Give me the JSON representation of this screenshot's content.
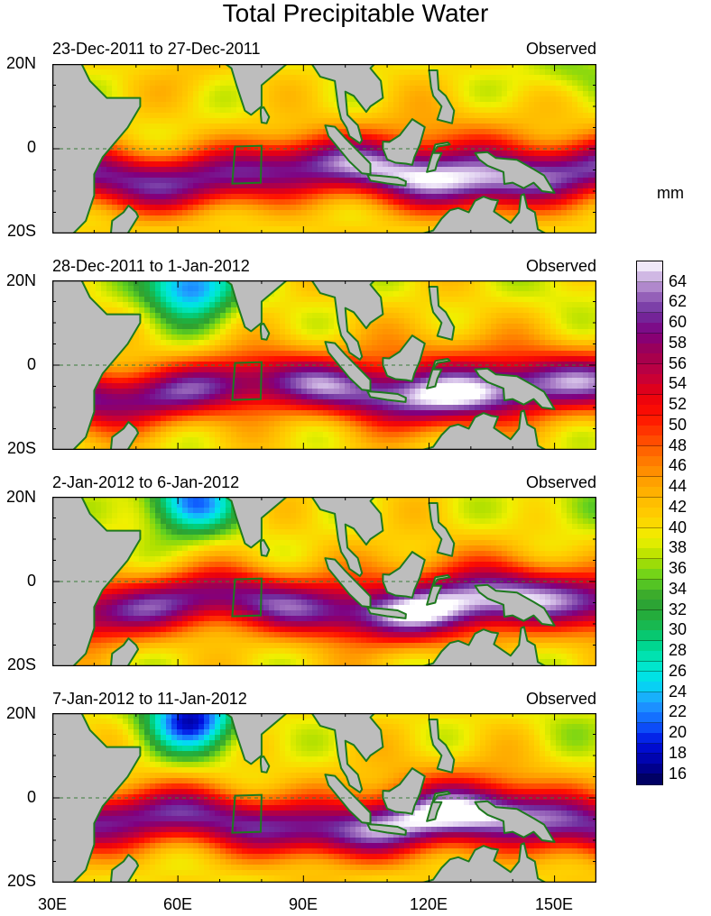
{
  "title": "Total Precipitable Water",
  "units": "mm",
  "colors": {
    "land": "#bdbdbd",
    "coast": "#1e7a1e",
    "box": "#1e7a1e",
    "equator": "#3a7a3a"
  },
  "chart_data": {
    "type": "heatmap",
    "title": "Total Precipitable Water",
    "colorbar_label": "mm",
    "colorbar_ticks": [
      "64",
      "62",
      "60",
      "58",
      "56",
      "54",
      "52",
      "50",
      "48",
      "46",
      "44",
      "42",
      "40",
      "38",
      "36",
      "34",
      "32",
      "30",
      "28",
      "26",
      "24",
      "22",
      "20",
      "18",
      "16"
    ],
    "colorbar_range": [
      15,
      66
    ],
    "x_ticks": [
      "30E",
      "60E",
      "90E",
      "120E",
      "150E"
    ],
    "x_tick_values": [
      30,
      60,
      90,
      120,
      150
    ],
    "xlim": [
      30,
      160
    ],
    "y_ticks": [
      "20N",
      "0",
      "20S"
    ],
    "y_tick_values": [
      20,
      0,
      -20
    ],
    "ylim": [
      -20,
      20
    ],
    "panels": [
      {
        "left_title": "23-Dec-2011 to 27-Dec-2011",
        "right_title": "Observed",
        "northwest_min": 42,
        "northeast_min": 36
      },
      {
        "left_title": "28-Dec-2011 to 1-Jan-2012",
        "right_title": "Observed",
        "northwest_min": 20,
        "northeast_min": 38
      },
      {
        "left_title": "2-Jan-2012 to 6-Jan-2012",
        "right_title": "Observed",
        "northwest_min": 22,
        "northeast_min": 36
      },
      {
        "left_title": "7-Jan-2012 to 11-Jan-2012",
        "right_title": "Observed",
        "northwest_min": 18,
        "northeast_min": 38
      }
    ]
  }
}
